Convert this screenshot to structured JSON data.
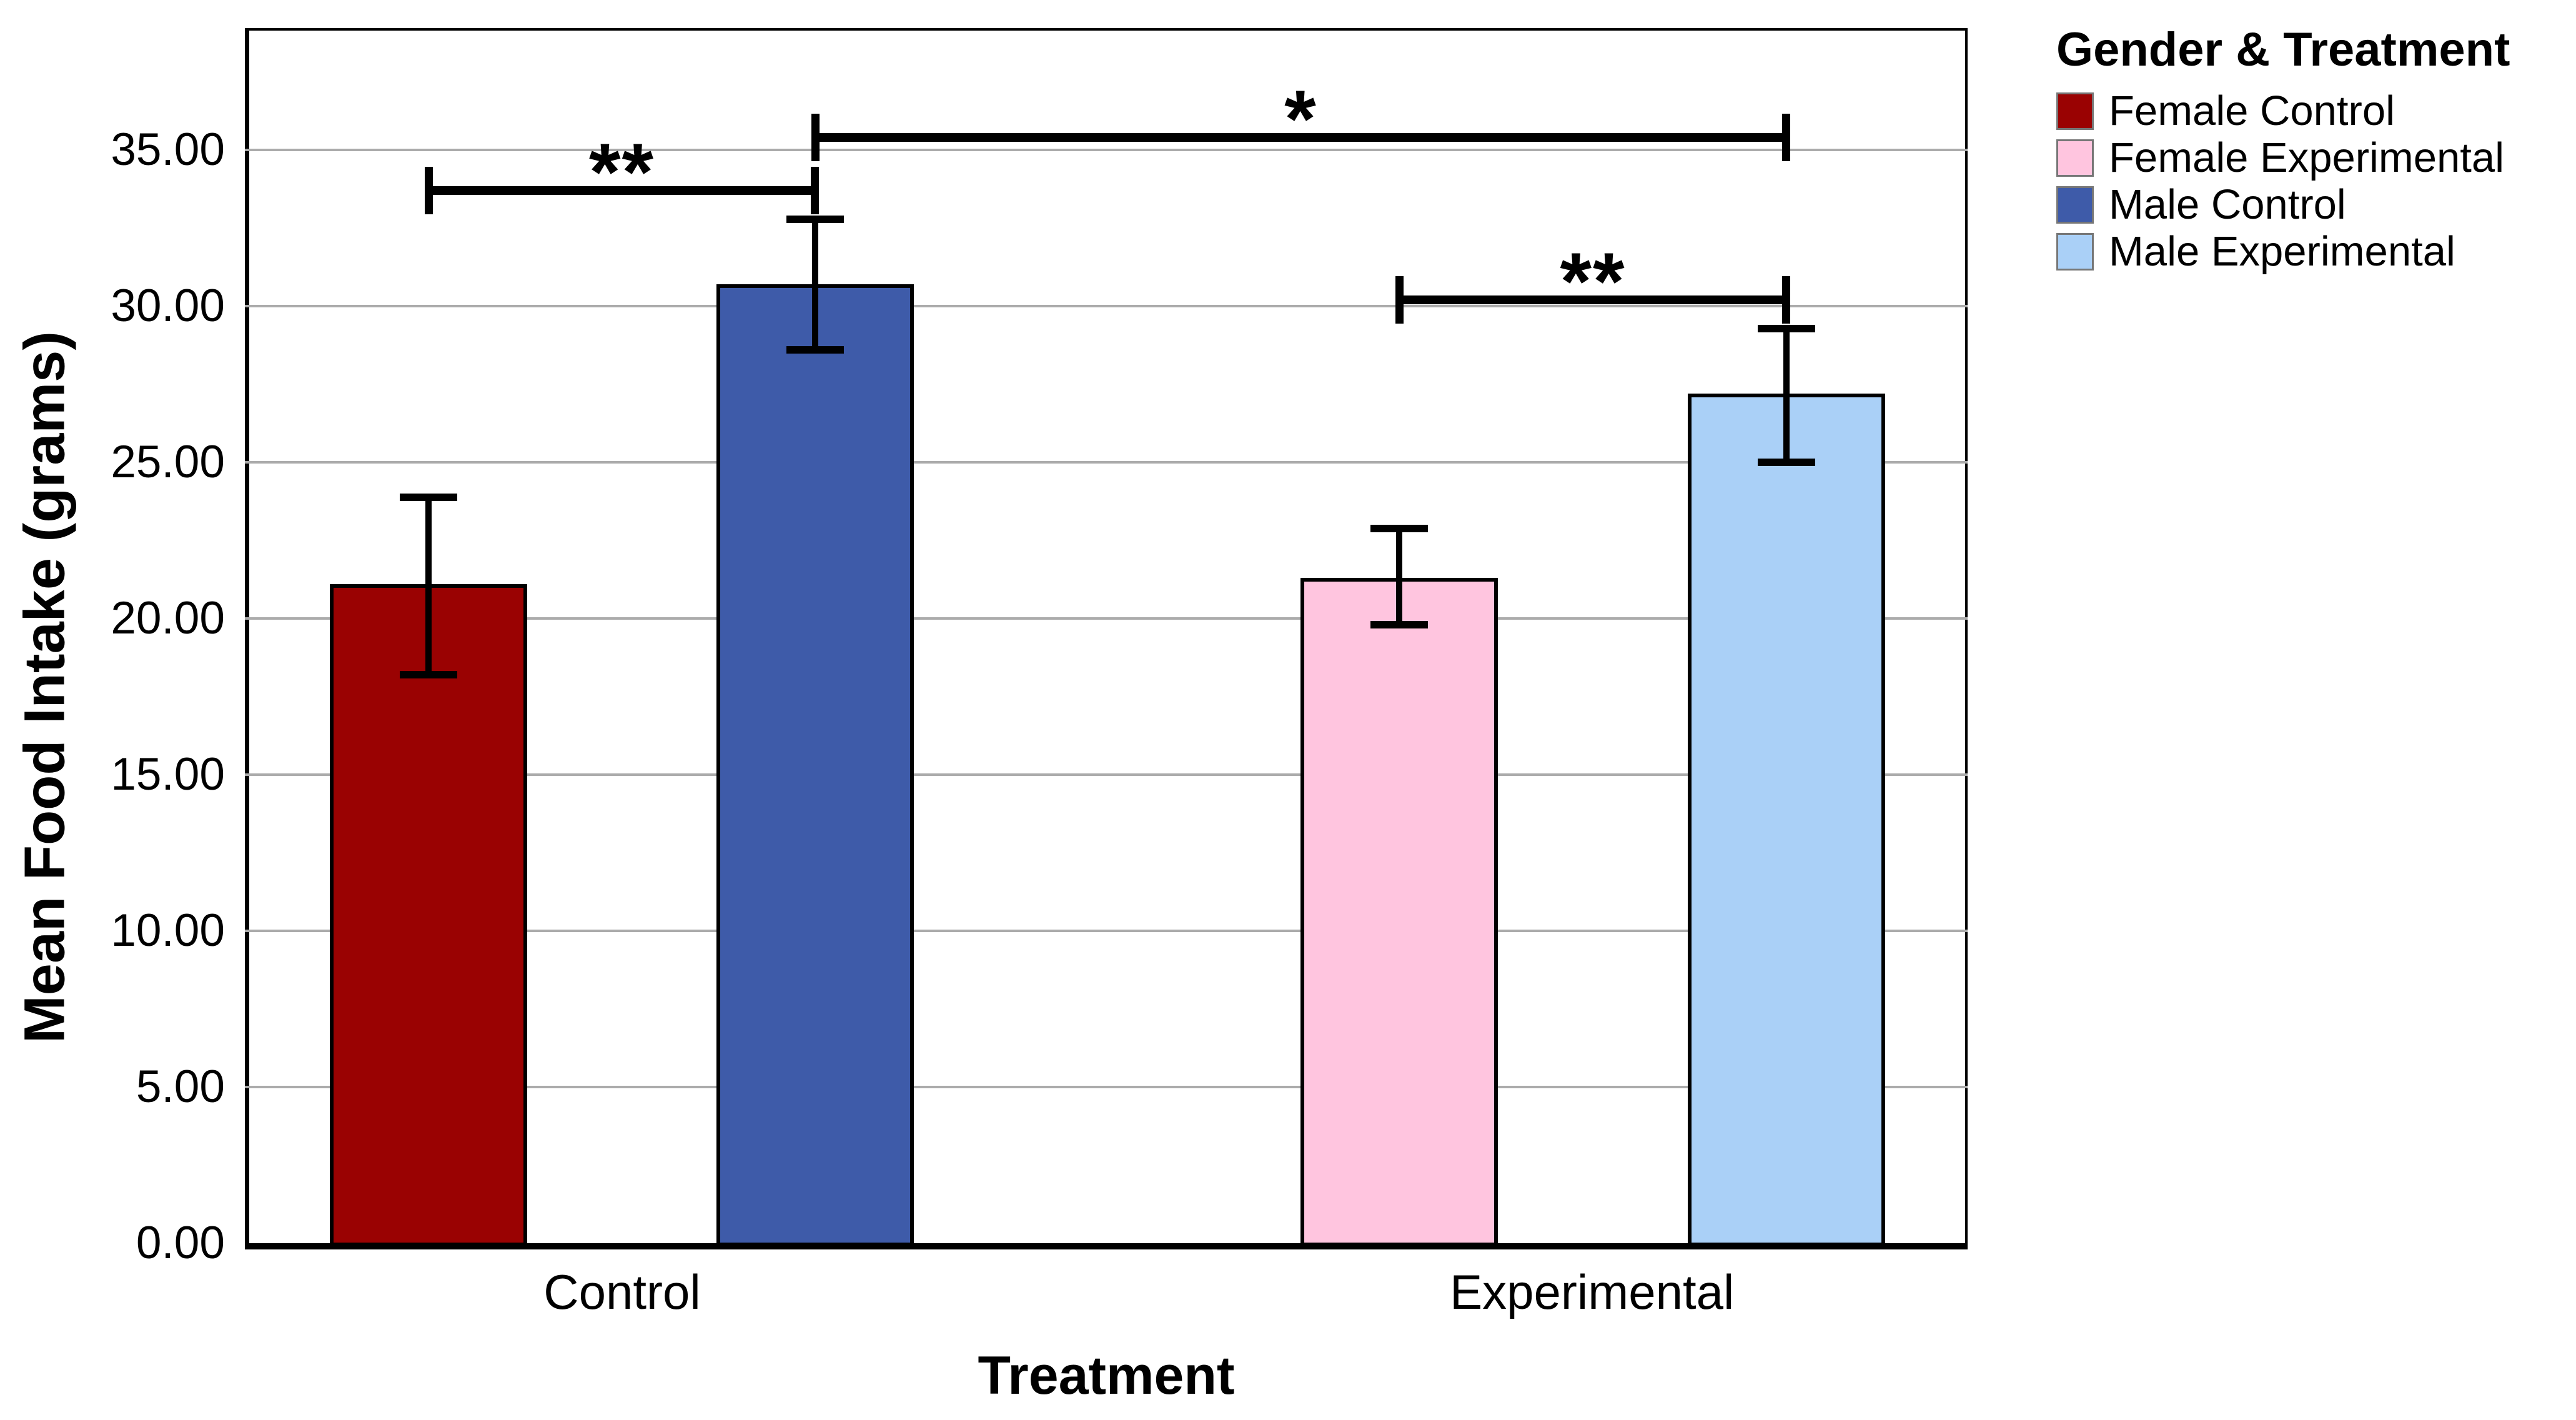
{
  "chart_data": {
    "type": "bar",
    "title": "",
    "xlabel": "Treatment",
    "ylabel": "Mean Food Intake (grams)",
    "categories": [
      "Control",
      "Experimental"
    ],
    "ylim": [
      0,
      38.9
    ],
    "grid": true,
    "y_ticks": [
      {
        "label": "0.00",
        "value": 0
      },
      {
        "label": "5.00",
        "value": 5
      },
      {
        "label": "10.00",
        "value": 10
      },
      {
        "label": "15.00",
        "value": 15
      },
      {
        "label": "20.00",
        "value": 20
      },
      {
        "label": "25.00",
        "value": 25
      },
      {
        "label": "30.00",
        "value": 30
      },
      {
        "label": "35.00",
        "value": 35
      }
    ],
    "series": [
      {
        "name": "Female Control",
        "treatment": "Control",
        "color": "#9A0202",
        "mean": 21.1,
        "ci_low": 18.2,
        "ci_high": 23.9
      },
      {
        "name": "Male Control",
        "treatment": "Control",
        "color": "#3E5BA9",
        "mean": 30.7,
        "ci_low": 28.6,
        "ci_high": 32.8
      },
      {
        "name": "Female Experimental",
        "treatment": "Experimental",
        "color": "#FFC5DF",
        "mean": 21.3,
        "ci_low": 19.8,
        "ci_high": 22.9
      },
      {
        "name": "Male Experimental",
        "treatment": "Experimental",
        "color": "#AAD0F7",
        "mean": 27.2,
        "ci_low": 25.0,
        "ci_high": 29.3
      }
    ],
    "significance": [
      {
        "label": "**",
        "from": "Female Control",
        "to": "Male Control",
        "y": 33.7
      },
      {
        "label": "*",
        "from": "Male Control",
        "to": "Male Experimental",
        "y": 35.4
      },
      {
        "label": "**",
        "from": "Female Experimental",
        "to": "Male Experimental",
        "y": 30.2
      }
    ],
    "legend": {
      "title": "Gender & Treatment",
      "position": "top-right",
      "entries": [
        {
          "label": "Female Control",
          "color": "#9A0202"
        },
        {
          "label": "Female Experimental",
          "color": "#FFC5DF"
        },
        {
          "label": "Male Control",
          "color": "#3E5BA9"
        },
        {
          "label": "Male Experimental",
          "color": "#AAD0F7"
        }
      ]
    }
  }
}
